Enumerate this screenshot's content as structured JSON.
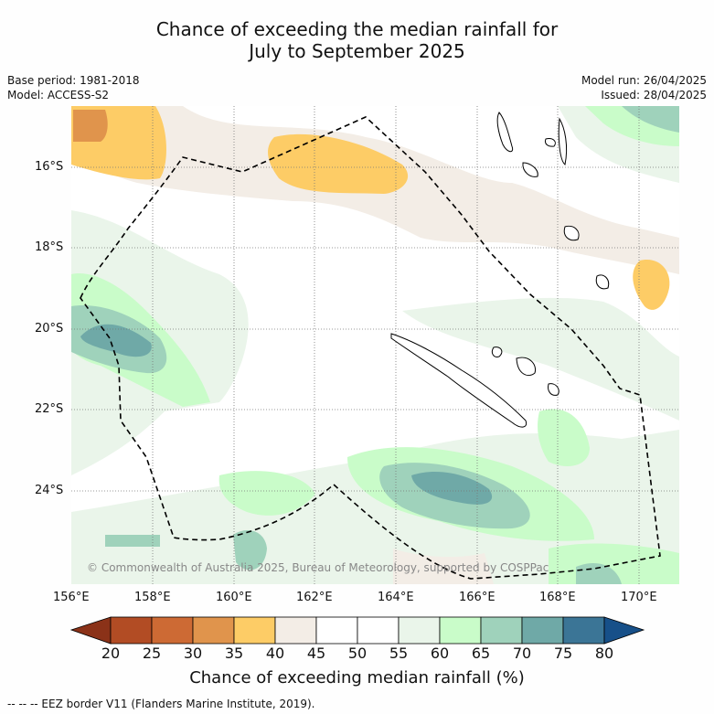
{
  "title_line1": "Chance of exceeding the median rainfall for",
  "title_line2": "July to September 2025",
  "base_period": "Base period: 1981-2018",
  "model": "Model: ACCESS-S2",
  "model_run": "Model run: 26/04/2025",
  "issued": "Issued: 28/04/2025",
  "lat_labels": [
    "16°S",
    "18°S",
    "20°S",
    "22°S",
    "24°S"
  ],
  "lon_labels": [
    "156°E",
    "158°E",
    "160°E",
    "162°E",
    "164°E",
    "166°E",
    "168°E",
    "170°E"
  ],
  "copyright": "© Commonwealth of Australia 2025, Bureau of Meteorology, supported by COSPPac",
  "colorbar": {
    "labels": [
      "20",
      "25",
      "30",
      "35",
      "40",
      "45",
      "50",
      "55",
      "60",
      "65",
      "70",
      "75",
      "80"
    ],
    "colors": [
      "#8b3218",
      "#b24c24",
      "#cd6a34",
      "#e0944c",
      "#fdcc66",
      "#f3ede6",
      "#ffffff",
      "#ffffff",
      "#eaf5ea",
      "#c9fcc9",
      "#9fd2bb",
      "#6fa9a7",
      "#3b7596",
      "#175089"
    ],
    "title": "Chance of exceeding median rainfall (%)"
  },
  "footer": "--  --  -- EEZ border V11 (Flanders Marine Institute, 2019)."
}
